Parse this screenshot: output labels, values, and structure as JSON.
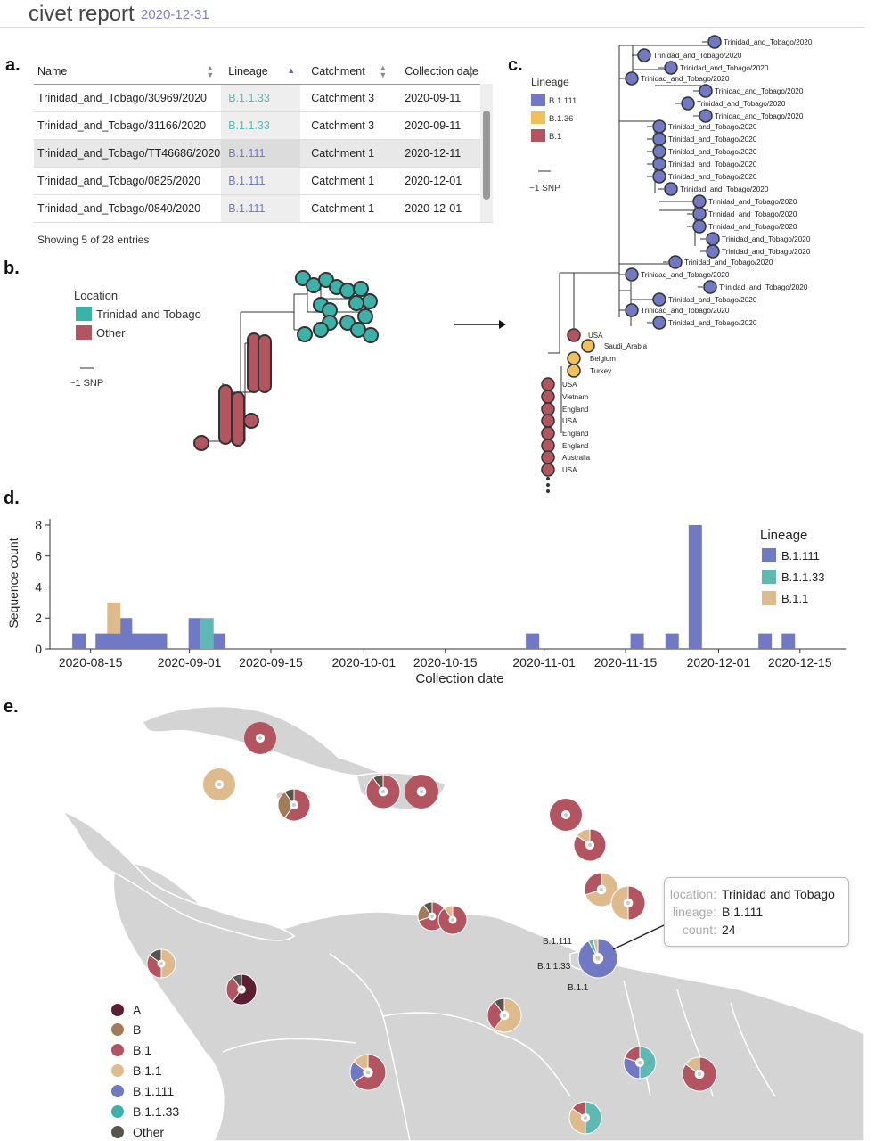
{
  "header": {
    "title": "civet report",
    "date": "2020-12-31"
  },
  "panel_labels": {
    "a": "a.",
    "b": "b.",
    "c": "c.",
    "d": "d.",
    "e": "e."
  },
  "colors": {
    "B.1.111": "#7179c4",
    "B.1.1.33": "#5fb8b4",
    "B.1.1": "#ddbb8c",
    "B.1.36": "#f0c05a",
    "B.1": "#b35560",
    "A": "#5c1f32",
    "B": "#a27c58",
    "Other": "#5a544f",
    "trinidad": "#3cb1a8",
    "other_loc": "#b35560",
    "accent": "#7a82c8"
  },
  "table": {
    "headers": {
      "name": "Name",
      "lineage": "Lineage",
      "catchment": "Catchment",
      "date": "Collection date"
    },
    "rows": [
      {
        "name": "Trinidad_and_Tobago/30969/2020",
        "lineage": "B.1.1.33",
        "catchment": "Catchment 3",
        "date": "2020-09-11"
      },
      {
        "name": "Trinidad_and_Tobago/31166/2020",
        "lineage": "B.1.1.33",
        "catchment": "Catchment 3",
        "date": "2020-09-11"
      },
      {
        "name": "Trinidad_and_Tobago/TT46686/2020",
        "lineage": "B.1.111",
        "catchment": "Catchment 1",
        "date": "2020-12-11"
      },
      {
        "name": "Trinidad_and_Tobago/0825/2020",
        "lineage": "B.1.111",
        "catchment": "Catchment 1",
        "date": "2020-12-01"
      },
      {
        "name": "Trinidad_and_Tobago/0840/2020",
        "lineage": "B.1.111",
        "catchment": "Catchment 1",
        "date": "2020-12-01"
      }
    ],
    "footer": "Showing 5 of 28 entries"
  },
  "tree_b": {
    "legend_title": "Location",
    "legend": [
      "Trinidad and Tobago",
      "Other"
    ],
    "scale": "~1 SNP"
  },
  "tree_c": {
    "legend_title": "Lineage",
    "legend": [
      "B.1.111",
      "B.1.36",
      "B.1"
    ],
    "scale": "~1 SNP",
    "tip_label": "Trinidad_and_Tobago/2020",
    "other_tips": [
      "USA",
      "Saudi_Arabia",
      "Belgium",
      "Turkey",
      "USA",
      "Vietnam",
      "England",
      "USA",
      "England",
      "England",
      "Australia",
      "USA"
    ]
  },
  "chart_data": {
    "type": "bar",
    "title": "",
    "xlabel": "Collection date",
    "ylabel": "Sequence count",
    "ylim": [
      0,
      8.4
    ],
    "yticks": [
      0,
      2,
      4,
      6,
      8
    ],
    "xticks": [
      "2020-08-15",
      "2020-09-01",
      "2020-09-15",
      "2020-10-01",
      "2020-10-15",
      "2020-11-01",
      "2020-11-15",
      "2020-12-01",
      "2020-12-15"
    ],
    "legend_title": "Lineage",
    "series": [
      {
        "name": "B.1.111",
        "points": [
          {
            "date": "2020-08-13",
            "value": 1
          },
          {
            "date": "2020-08-17",
            "value": 1
          },
          {
            "date": "2020-08-19",
            "value": 1
          },
          {
            "date": "2020-08-21",
            "value": 2
          },
          {
            "date": "2020-08-23",
            "value": 1
          },
          {
            "date": "2020-08-25",
            "value": 1
          },
          {
            "date": "2020-08-27",
            "value": 1
          },
          {
            "date": "2020-09-02",
            "value": 2
          },
          {
            "date": "2020-09-06",
            "value": 1
          },
          {
            "date": "2020-10-30",
            "value": 1
          },
          {
            "date": "2020-11-17",
            "value": 1
          },
          {
            "date": "2020-11-23",
            "value": 1
          },
          {
            "date": "2020-11-27",
            "value": 8
          },
          {
            "date": "2020-12-09",
            "value": 1
          },
          {
            "date": "2020-12-13",
            "value": 1
          }
        ]
      },
      {
        "name": "B.1.1.33",
        "points": [
          {
            "date": "2020-09-04",
            "value": 2
          }
        ]
      },
      {
        "name": "B.1.1",
        "points": [
          {
            "date": "2020-08-19",
            "value": 2
          }
        ]
      }
    ]
  },
  "map": {
    "legend": [
      "A",
      "B",
      "B.1",
      "B.1.1",
      "B.1.111",
      "B.1.1.33",
      "Other"
    ],
    "callout_labels": {
      "top": "B.1.111",
      "mid": "B.1.1.33",
      "bottom": "B.1.1"
    },
    "tooltip": {
      "location_key": "location:",
      "location": "Trinidad and Tobago",
      "lineage_key": "lineage:",
      "lineage": "B.1.111",
      "count_key": "count:",
      "count": "24"
    }
  }
}
